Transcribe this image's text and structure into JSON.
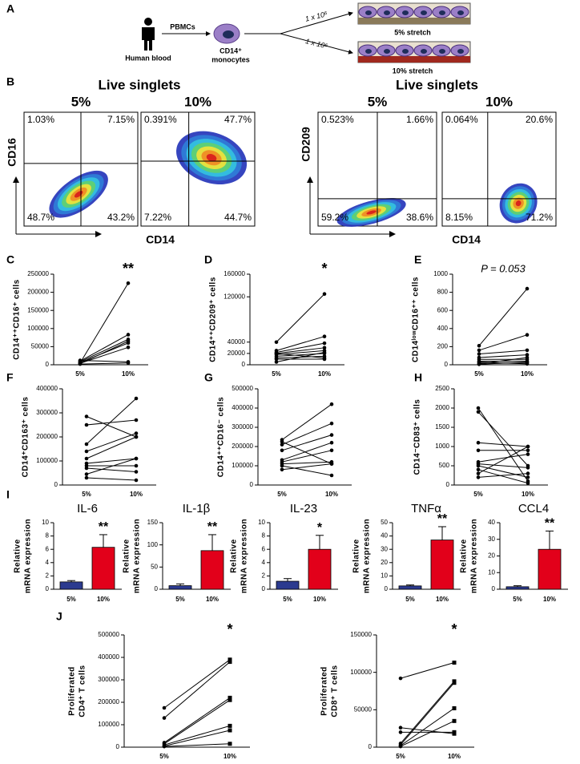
{
  "diagram": {
    "panel": "A",
    "source": "Human blood",
    "step": "PBMCs",
    "cell": [
      "CD14⁺",
      "monocytes"
    ],
    "seeding": [
      "1 x 10⁶",
      "1 x 10⁶"
    ],
    "conditions": [
      "5% stretch",
      "10% stretch"
    ]
  },
  "flow": {
    "panel": "B",
    "groups": [
      {
        "title": "Live singlets",
        "xlabel": "CD14",
        "ylabel": "CD16",
        "plots": [
          {
            "condition": "5%",
            "quadrants": [
              "1.03%",
              "7.15%",
              "48.7%",
              "43.2%"
            ]
          },
          {
            "condition": "10%",
            "quadrants": [
              "0.391%",
              "47.7%",
              "7.22%",
              "44.7%"
            ]
          }
        ]
      },
      {
        "title": "Live singlets",
        "xlabel": "CD14",
        "ylabel": "CD209",
        "plots": [
          {
            "condition": "5%",
            "quadrants": [
              "0.523%",
              "1.66%",
              "59.2%",
              "38.6%"
            ]
          },
          {
            "condition": "10%",
            "quadrants": [
              "0.064%",
              "20.6%",
              "8.15%",
              "71.2%"
            ]
          }
        ]
      }
    ]
  },
  "chart_data": [
    {
      "type": "paired",
      "panel": "C",
      "ylabel": "CD14⁺⁺CD16⁺ cells",
      "categories": [
        "5%",
        "10%"
      ],
      "markers": [
        "circle",
        "circle"
      ],
      "annotation": "**",
      "ylim": [
        0,
        250000
      ],
      "yticks": [
        0,
        50000,
        100000,
        150000,
        200000,
        250000
      ],
      "series": [
        {
          "values": [
            5000,
            225000
          ]
        },
        {
          "values": [
            10000,
            83000
          ]
        },
        {
          "values": [
            8000,
            70000
          ]
        },
        {
          "values": [
            3000,
            65000
          ]
        },
        {
          "values": [
            6000,
            60000
          ]
        },
        {
          "values": [
            4000,
            48000
          ]
        },
        {
          "values": [
            12000,
            8000
          ]
        },
        {
          "values": [
            2000,
            5000
          ]
        }
      ]
    },
    {
      "type": "paired",
      "panel": "D",
      "ylabel": "CD14⁺⁺CD209⁺ cells",
      "categories": [
        "5%",
        "10%"
      ],
      "markers": [
        "circle",
        "circle"
      ],
      "annotation": "*",
      "ylim": [
        0,
        160000
      ],
      "yticks": [
        0,
        20000,
        40000,
        120000,
        160000
      ],
      "series": [
        {
          "values": [
            40000,
            125000
          ]
        },
        {
          "values": [
            25000,
            50000
          ]
        },
        {
          "values": [
            22000,
            38000
          ]
        },
        {
          "values": [
            20000,
            30000
          ]
        },
        {
          "values": [
            18000,
            25000
          ]
        },
        {
          "values": [
            15000,
            20000
          ]
        },
        {
          "values": [
            12000,
            15000
          ]
        },
        {
          "values": [
            20000,
            12000
          ]
        },
        {
          "values": [
            10000,
            10000
          ]
        },
        {
          "values": [
            5000,
            22000
          ]
        }
      ]
    },
    {
      "type": "paired",
      "panel": "E",
      "ylabel": "CD14ˡᵒʷCD16⁺⁺ cells",
      "categories": [
        "5%",
        "10%"
      ],
      "markers": [
        "circle",
        "circle"
      ],
      "annotation": "P = 0.053",
      "ylim": [
        0,
        1000
      ],
      "yticks": [
        0,
        200,
        400,
        600,
        800,
        1000
      ],
      "series": [
        {
          "values": [
            210,
            840
          ]
        },
        {
          "values": [
            160,
            330
          ]
        },
        {
          "values": [
            120,
            160
          ]
        },
        {
          "values": [
            80,
            110
          ]
        },
        {
          "values": [
            60,
            60
          ]
        },
        {
          "values": [
            40,
            40
          ]
        },
        {
          "values": [
            20,
            20
          ]
        },
        {
          "values": [
            10,
            80
          ]
        },
        {
          "values": [
            5,
            30
          ]
        },
        {
          "values": [
            30,
            10
          ]
        }
      ]
    },
    {
      "type": "paired",
      "panel": "F",
      "ylabel": "CD14⁺CD163⁺ cells",
      "categories": [
        "5%",
        "10%"
      ],
      "markers": [
        "circle",
        "circle"
      ],
      "ylim": [
        0,
        400000
      ],
      "yticks": [
        0,
        100000,
        200000,
        300000,
        400000
      ],
      "series": [
        {
          "values": [
            285000,
            200000
          ]
        },
        {
          "values": [
            250000,
            270000
          ]
        },
        {
          "values": [
            170000,
            360000
          ]
        },
        {
          "values": [
            140000,
            215000
          ]
        },
        {
          "values": [
            110000,
            200000
          ]
        },
        {
          "values": [
            90000,
            110000
          ]
        },
        {
          "values": [
            80000,
            80000
          ]
        },
        {
          "values": [
            70000,
            55000
          ]
        },
        {
          "values": [
            45000,
            110000
          ]
        },
        {
          "values": [
            30000,
            20000
          ]
        }
      ]
    },
    {
      "type": "paired",
      "panel": "G",
      "ylabel": "CD14⁺⁺CD16⁻ cells",
      "categories": [
        "5%",
        "10%"
      ],
      "markers": [
        "circle",
        "circle"
      ],
      "ylim": [
        0,
        500000
      ],
      "yticks": [
        0,
        100000,
        200000,
        300000,
        400000,
        500000
      ],
      "series": [
        {
          "values": [
            235000,
            420000
          ]
        },
        {
          "values": [
            225000,
            110000
          ]
        },
        {
          "values": [
            210000,
            320000
          ]
        },
        {
          "values": [
            180000,
            260000
          ]
        },
        {
          "values": [
            130000,
            220000
          ]
        },
        {
          "values": [
            120000,
            180000
          ]
        },
        {
          "values": [
            110000,
            120000
          ]
        },
        {
          "values": [
            100000,
            50000
          ]
        },
        {
          "values": [
            80000,
            110000
          ]
        }
      ]
    },
    {
      "type": "paired",
      "panel": "H",
      "ylabel": "CD14⁻CD83⁺ cells",
      "categories": [
        "5%",
        "10%"
      ],
      "markers": [
        "circle",
        "circle"
      ],
      "ylim": [
        0,
        2500
      ],
      "yticks": [
        0,
        500,
        1000,
        1500,
        2000,
        2500
      ],
      "series": [
        {
          "values": [
            2000,
            100
          ]
        },
        {
          "values": [
            1900,
            500
          ]
        },
        {
          "values": [
            1100,
            1000
          ]
        },
        {
          "values": [
            900,
            900
          ]
        },
        {
          "values": [
            600,
            800
          ]
        },
        {
          "values": [
            550,
            450
          ]
        },
        {
          "values": [
            500,
            200
          ]
        },
        {
          "values": [
            400,
            50
          ]
        },
        {
          "values": [
            300,
            1000
          ]
        },
        {
          "values": [
            200,
            300
          ]
        }
      ]
    },
    {
      "type": "bar",
      "panel": "I",
      "title": "IL-6",
      "ylabel": [
        "Relative",
        "mRNA expression"
      ],
      "categories": [
        "5%",
        "10%"
      ],
      "values": [
        1.1,
        6.3
      ],
      "errors": [
        0.2,
        1.9
      ],
      "colors": [
        "#2b3a8f",
        "#e2001a"
      ],
      "annotation": "**",
      "ylim": [
        0,
        10
      ],
      "yticks": [
        0,
        2,
        4,
        6,
        8,
        10
      ]
    },
    {
      "type": "bar",
      "title": "IL-1β",
      "ylabel": [
        "Relative",
        "mRNA expression"
      ],
      "categories": [
        "5%",
        "10%"
      ],
      "values": [
        8,
        87
      ],
      "errors": [
        4,
        36
      ],
      "colors": [
        "#2b3a8f",
        "#e2001a"
      ],
      "annotation": "**",
      "ylim": [
        0,
        150
      ],
      "yticks": [
        0,
        50,
        100,
        150
      ]
    },
    {
      "type": "bar",
      "title": "IL-23",
      "ylabel": [
        "Relative",
        "mRNA expression"
      ],
      "categories": [
        "5%",
        "10%"
      ],
      "values": [
        1.2,
        6
      ],
      "errors": [
        0.4,
        2.1
      ],
      "colors": [
        "#2b3a8f",
        "#e2001a"
      ],
      "annotation": "*",
      "ylim": [
        0,
        10
      ],
      "yticks": [
        0,
        2,
        4,
        6,
        8,
        10
      ]
    },
    {
      "type": "bar",
      "title": "TNFα",
      "ylabel": [
        "Relative",
        "mRNA expression"
      ],
      "categories": [
        "5%",
        "10%"
      ],
      "values": [
        2.5,
        37
      ],
      "errors": [
        0.7,
        10
      ],
      "colors": [
        "#2b3a8f",
        "#e2001a"
      ],
      "annotation": "**",
      "ylim": [
        0,
        50
      ],
      "yticks": [
        0,
        10,
        20,
        30,
        40,
        50
      ]
    },
    {
      "type": "bar",
      "title": "CCL4",
      "ylabel": [
        "Relative",
        "mRNA expression"
      ],
      "categories": [
        "5%",
        "10%"
      ],
      "values": [
        1.5,
        24
      ],
      "errors": [
        0.6,
        11
      ],
      "colors": [
        "#2b3a8f",
        "#e2001a"
      ],
      "annotation": "**",
      "ylim": [
        0,
        40
      ],
      "yticks": [
        0,
        10,
        20,
        30,
        40
      ]
    },
    {
      "type": "paired",
      "panel": "J",
      "ylabel": [
        "Proliferated",
        "CD4⁺ T cells"
      ],
      "categories": [
        "5%",
        "10%"
      ],
      "markers": [
        "circle",
        "square"
      ],
      "annotation": "*",
      "ylim": [
        0,
        500000
      ],
      "yticks": [
        0,
        100000,
        200000,
        300000,
        400000,
        500000
      ],
      "series": [
        {
          "values": [
            175000,
            390000
          ]
        },
        {
          "values": [
            130000,
            380000
          ]
        },
        {
          "values": [
            20000,
            220000
          ]
        },
        {
          "values": [
            15000,
            210000
          ]
        },
        {
          "values": [
            10000,
            95000
          ]
        },
        {
          "values": [
            5000,
            75000
          ]
        },
        {
          "values": [
            3000,
            15000
          ]
        }
      ]
    },
    {
      "type": "paired",
      "ylabel": [
        "Proliferated",
        "CD8⁺ T cells"
      ],
      "categories": [
        "5%",
        "10%"
      ],
      "markers": [
        "circle",
        "square"
      ],
      "annotation": "*",
      "ylim": [
        0,
        150000
      ],
      "yticks": [
        0,
        50000,
        100000,
        150000
      ],
      "series": [
        {
          "values": [
            92000,
            113000
          ]
        },
        {
          "values": [
            26000,
            18000
          ]
        },
        {
          "values": [
            20000,
            20000
          ]
        },
        {
          "values": [
            5000,
            88000
          ]
        },
        {
          "values": [
            3000,
            86000
          ]
        },
        {
          "values": [
            2000,
            52000
          ]
        },
        {
          "values": [
            1000,
            35000
          ]
        }
      ]
    }
  ]
}
